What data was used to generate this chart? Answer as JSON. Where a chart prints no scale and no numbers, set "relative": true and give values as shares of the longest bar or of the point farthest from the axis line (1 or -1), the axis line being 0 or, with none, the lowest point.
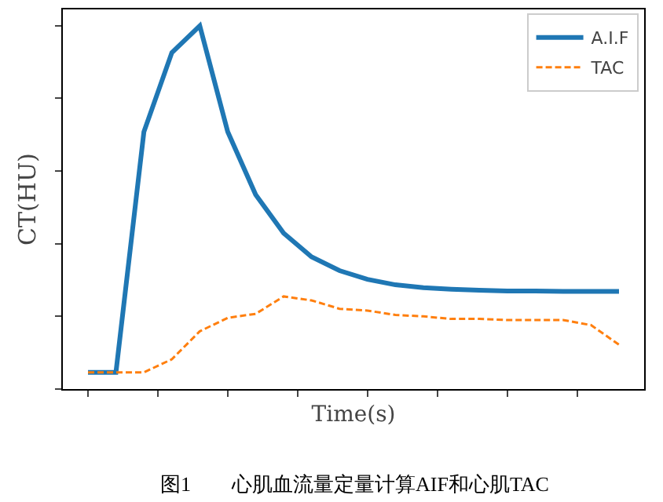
{
  "chart_data": {
    "type": "line",
    "relative": true,
    "xlabel": "Time(s)",
    "ylabel": "CT(HU)",
    "categories": [
      null,
      null,
      null,
      null,
      null,
      null,
      null,
      null,
      null,
      null,
      null,
      null,
      null,
      null,
      null,
      null,
      null,
      null,
      null,
      null
    ],
    "series": [
      {
        "name": "A.I.F",
        "color": "#1f77b4",
        "line_style": "solid",
        "values": [
          0.046,
          0.046,
          0.708,
          0.926,
          1,
          0.708,
          0.535,
          0.429,
          0.364,
          0.326,
          0.302,
          0.287,
          0.279,
          0.275,
          0.272,
          0.27,
          0.27,
          0.269,
          0.269,
          0.269
        ]
      },
      {
        "name": "TAC",
        "color": "#ff7f0e",
        "line_style": "dashed",
        "values": [
          0.046,
          0.046,
          0.046,
          0.082,
          0.159,
          0.196,
          0.207,
          0.255,
          0.244,
          0.221,
          0.216,
          0.204,
          0.2,
          0.193,
          0.193,
          0.19,
          0.19,
          0.19,
          0.176,
          0.122
        ]
      }
    ],
    "legend": "top right",
    "grid": false,
    "marker": "none",
    "annotations": [
      "图1　　心肌血流量定量计算AIF和心肌TAC"
    ]
  }
}
